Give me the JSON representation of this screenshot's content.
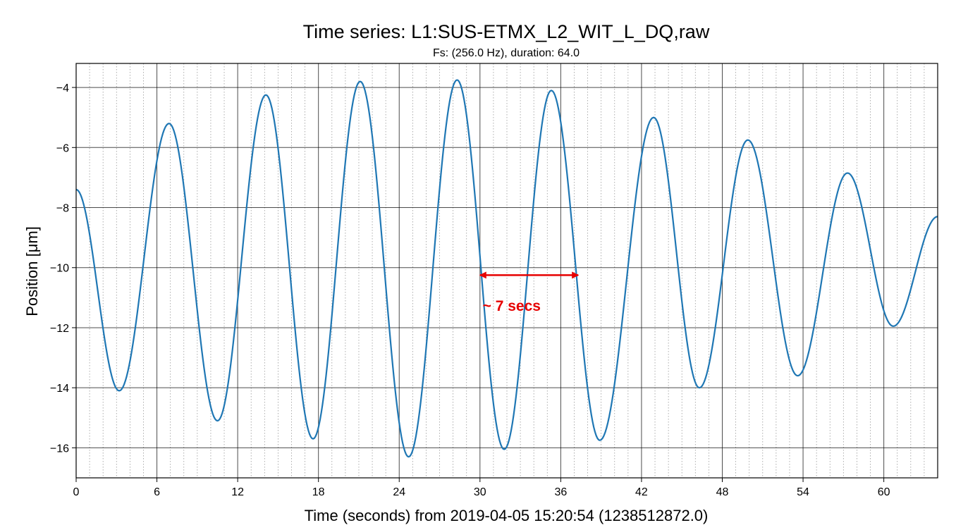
{
  "chart_data": {
    "type": "line",
    "title": "Time series: L1:SUS-ETMX_L2_WIT_L_DQ,raw",
    "subtitle": "Fs: (256.0 Hz), duration: 64.0",
    "xlabel": "Time (seconds) from 2019-04-05 15:20:54 (1238512872.0)",
    "ylabel": "Position [μm]",
    "xlim": [
      0,
      64
    ],
    "ylim": [
      -17,
      -3.2
    ],
    "x_ticks": [
      0,
      6,
      12,
      18,
      24,
      30,
      36,
      42,
      48,
      54,
      60
    ],
    "y_ticks": [
      -16,
      -14,
      -12,
      -10,
      -8,
      -6,
      -4
    ],
    "grid": true,
    "minor_x_step": 1,
    "series": [
      {
        "color": "#1f77b4",
        "extrema": [
          [
            0,
            -7.4
          ],
          [
            3.2,
            -14.1
          ],
          [
            6.9,
            -5.2
          ],
          [
            10.5,
            -15.1
          ],
          [
            14.1,
            -4.25
          ],
          [
            17.6,
            -15.7
          ],
          [
            21.1,
            -3.8
          ],
          [
            24.7,
            -16.3
          ],
          [
            28.3,
            -3.75
          ],
          [
            31.8,
            -16.05
          ],
          [
            35.3,
            -4.1
          ],
          [
            38.9,
            -15.75
          ],
          [
            42.9,
            -5.0
          ],
          [
            46.3,
            -14.0
          ],
          [
            49.9,
            -5.75
          ],
          [
            53.6,
            -13.6
          ],
          [
            57.3,
            -6.85
          ],
          [
            60.7,
            -11.95
          ],
          [
            64,
            -8.3
          ]
        ]
      }
    ],
    "annotations": [
      {
        "text": "~ 7 secs",
        "color": "#e60000",
        "arrow_from": [
          30,
          -10.25
        ],
        "arrow_to": [
          37.3,
          -10.25
        ],
        "text_at": [
          30.2,
          -11.25
        ]
      }
    ]
  }
}
